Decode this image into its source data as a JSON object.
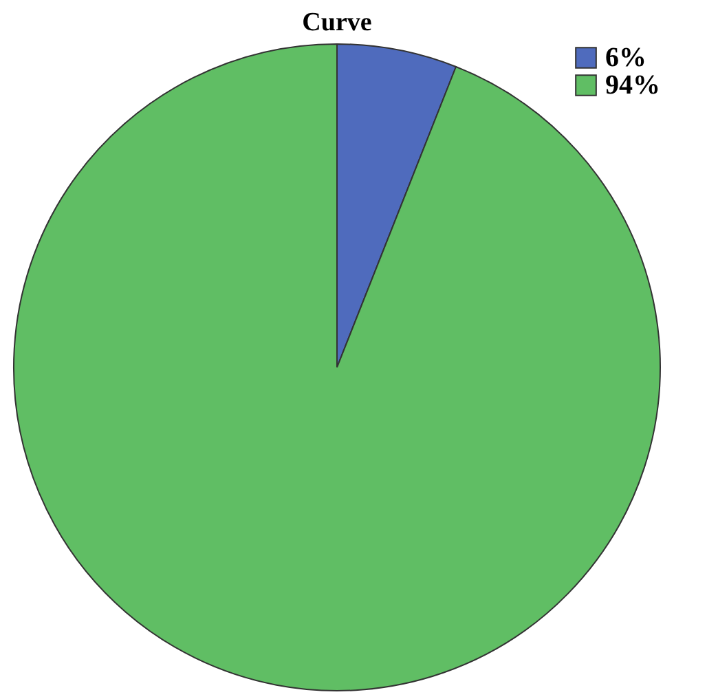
{
  "chart_data": {
    "type": "pie",
    "title": "Curve",
    "categories": [
      "6%",
      "94%"
    ],
    "values": [
      6,
      94
    ],
    "colors": [
      "#4f6bbd",
      "#60be64"
    ],
    "legend": "top right"
  }
}
